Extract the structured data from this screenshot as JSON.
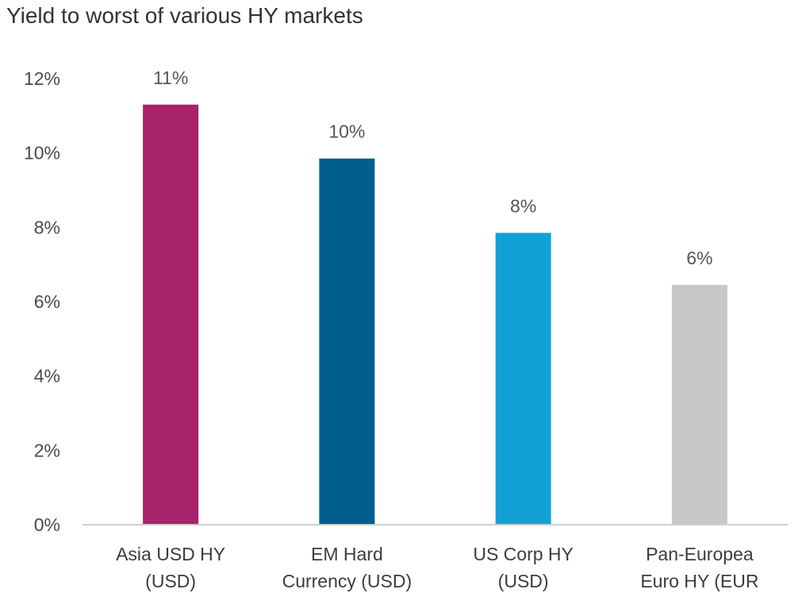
{
  "chart_data": {
    "type": "bar",
    "title": "Yield to worst of various HY markets",
    "xlabel": "",
    "ylabel": "",
    "ylim": [
      0,
      12
    ],
    "yticks": [
      0,
      2,
      4,
      6,
      8,
      10,
      12
    ],
    "ytick_labels": [
      "0%",
      "2%",
      "4%",
      "6%",
      "8%",
      "10%",
      "12%"
    ],
    "grid": false,
    "categories": [
      [
        "Asia USD HY",
        "(USD)"
      ],
      [
        "EM Hard",
        "Currency (USD)"
      ],
      [
        "US Corp HY",
        "(USD)"
      ],
      [
        "Pan-Europea",
        "Euro HY (EUR"
      ]
    ],
    "values": [
      11.3,
      9.85,
      7.85,
      6.45
    ],
    "data_labels": [
      "11%",
      "10%",
      "8%",
      "6%"
    ],
    "colors": [
      "#A6226B",
      "#005F8F",
      "#13A0D6",
      "#C6C7C8"
    ],
    "axis_color": "#cfcfcf"
  }
}
